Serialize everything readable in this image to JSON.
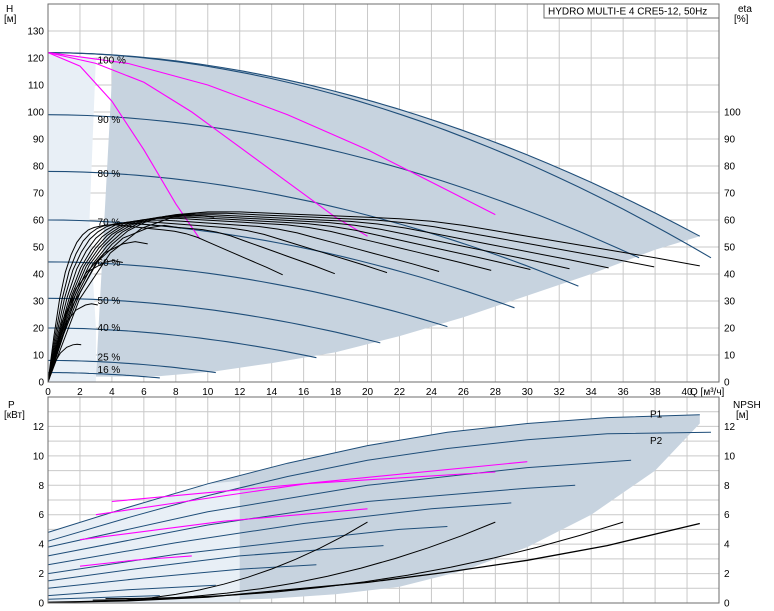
{
  "title_box": "HYDRO MULTI-E 4 CRE5-12, 50Hz",
  "chart_data": [
    {
      "type": "line",
      "name": "HQ-curves",
      "xlabel": "Q [м³/ч]",
      "ylabel_left_top": "H",
      "ylabel_left_unit": "[м]",
      "ylabel_right_top": "eta",
      "ylabel_right_unit": "[%]",
      "xlim": [
        0,
        42
      ],
      "ylim": [
        0,
        140
      ],
      "x_ticks": [
        "0",
        "2",
        "4",
        "6",
        "8",
        "10",
        "12",
        "14",
        "16",
        "18",
        "20",
        "22",
        "24",
        "26",
        "28",
        "30",
        "32",
        "34",
        "36",
        "38",
        "40"
      ],
      "y_ticks": [
        "0",
        "10",
        "20",
        "30",
        "40",
        "50",
        "60",
        "70",
        "80",
        "90",
        "100",
        "110",
        "120",
        "130"
      ],
      "eta_ticks": [
        "0",
        "10",
        "20",
        "30",
        "40",
        "50",
        "60",
        "70",
        "80",
        "90",
        "100"
      ],
      "speed_labels": [
        {
          "text": "100 %",
          "x": 2.6,
          "y": 119
        },
        {
          "text": "90 %",
          "x": 2.6,
          "y": 97
        },
        {
          "text": "80 %",
          "x": 2.6,
          "y": 77
        },
        {
          "text": "70 %",
          "x": 2.6,
          "y": 59
        },
        {
          "text": "60 %",
          "x": 2.6,
          "y": 44
        },
        {
          "text": "50 %",
          "x": 2.6,
          "y": 30
        },
        {
          "text": "40 %",
          "x": 2.6,
          "y": 20
        },
        {
          "text": "25 %",
          "x": 2.6,
          "y": 9
        },
        {
          "text": "16 %",
          "x": 2.6,
          "y": 4.5
        }
      ],
      "hq_curves": [
        {
          "speed": 100,
          "h0": 122,
          "qmax": 40.8,
          "hend": 54
        },
        {
          "speed": 100,
          "h0": 122,
          "qmax": 41.5,
          "hend": 46
        },
        {
          "speed": 90,
          "h0": 99,
          "qmax": 37,
          "hend": 46
        },
        {
          "speed": 80,
          "h0": 78,
          "qmax": 33.2,
          "hend": 35.5
        },
        {
          "speed": 70,
          "h0": 60,
          "qmax": 29.2,
          "hend": 27.5
        },
        {
          "speed": 60,
          "h0": 44.5,
          "qmax": 25,
          "hend": 20.5
        },
        {
          "speed": 50,
          "h0": 31,
          "qmax": 20.8,
          "hend": 14.5
        },
        {
          "speed": 40,
          "h0": 20,
          "qmax": 16.8,
          "hend": 9
        },
        {
          "speed": 25,
          "h0": 8,
          "qmax": 10.5,
          "hend": 3.5
        },
        {
          "speed": 16,
          "h0": 3.5,
          "qmax": 7,
          "hend": 1.5
        }
      ],
      "system_curves": [
        {
          "x": [
            0,
            2,
            4,
            6,
            8,
            9.5
          ],
          "y": [
            122,
            117,
            104,
            86,
            66,
            53
          ]
        },
        {
          "x": [
            0,
            3,
            6,
            9,
            12,
            15,
            18,
            20
          ],
          "y": [
            122,
            118,
            111,
            100,
            87,
            74,
            61,
            54
          ]
        },
        {
          "x": [
            0,
            5,
            10,
            15,
            20,
            25,
            28
          ],
          "y": [
            122,
            118,
            110,
            99,
            86,
            71,
            62
          ]
        }
      ],
      "eta_curves": [
        {
          "q": [
            0,
            1,
            2,
            3,
            4,
            5,
            6,
            7,
            8,
            9,
            10,
            12,
            14,
            16,
            18,
            20,
            22,
            24,
            26,
            28,
            30,
            32,
            34,
            36,
            38,
            40.8
          ],
          "eta": [
            0,
            18,
            33,
            44,
            51,
            56,
            59,
            61,
            62,
            62.5,
            63,
            63,
            62.5,
            62,
            61.5,
            61,
            60.5,
            59.5,
            58,
            56,
            54,
            52,
            50,
            48,
            46,
            43
          ]
        },
        {
          "q": [
            0,
            1.5,
            3,
            4.5,
            6,
            7,
            8
          ],
          "eta": [
            0,
            30,
            47,
            56,
            60,
            61,
            60
          ]
        }
      ]
    },
    {
      "type": "line",
      "name": "P-NPSH-curves",
      "ylabel_left_top": "P",
      "ylabel_left_unit": "[кВт]",
      "ylabel_right_top": "NPSH",
      "ylabel_right_unit": "[м]",
      "xlim": [
        0,
        42
      ],
      "ylim": [
        0,
        14
      ],
      "y_ticks": [
        "0",
        "2",
        "4",
        "6",
        "8",
        "10",
        "12"
      ],
      "npsh_ticks": [
        "0",
        "2",
        "4",
        "6",
        "8",
        "10",
        "12"
      ],
      "series_labels": [
        "P1",
        "P2"
      ],
      "p1": {
        "x": [
          0,
          5,
          10,
          15,
          20,
          25,
          30,
          35,
          40.8
        ],
        "y": [
          4.8,
          6.5,
          8.1,
          9.5,
          10.7,
          11.6,
          12.2,
          12.6,
          12.8
        ]
      },
      "p2": {
        "x": [
          0,
          5,
          10,
          15,
          20,
          25,
          30,
          35,
          41.5
        ],
        "y": [
          4.2,
          5.8,
          7.3,
          8.6,
          9.7,
          10.5,
          11.1,
          11.5,
          11.6
        ]
      },
      "p_curves": [
        {
          "x": [
            0,
            10,
            20,
            30,
            36.5
          ],
          "y": [
            3.8,
            6.2,
            8.0,
            9.2,
            9.7
          ]
        },
        {
          "x": [
            0,
            10,
            20,
            30,
            33
          ],
          "y": [
            3.2,
            5.3,
            6.9,
            7.8,
            8.0
          ]
        },
        {
          "x": [
            0,
            8,
            16,
            24,
            29
          ],
          "y": [
            2.6,
            4.1,
            5.4,
            6.4,
            6.8
          ]
        },
        {
          "x": [
            0,
            8,
            16,
            22,
            25
          ],
          "y": [
            2.0,
            3.3,
            4.3,
            5.0,
            5.2
          ]
        },
        {
          "x": [
            0,
            6,
            12,
            18,
            21
          ],
          "y": [
            1.5,
            2.4,
            3.2,
            3.7,
            3.9
          ]
        },
        {
          "x": [
            0,
            6,
            12,
            16.8
          ],
          "y": [
            1.0,
            1.7,
            2.3,
            2.6
          ]
        },
        {
          "x": [
            0,
            5,
            10.5
          ],
          "y": [
            0.5,
            0.9,
            1.2
          ]
        },
        {
          "x": [
            0,
            4,
            7
          ],
          "y": [
            0.25,
            0.4,
            0.5
          ]
        }
      ],
      "npsh": {
        "x": [
          0,
          5,
          10,
          15,
          20,
          25,
          30,
          35,
          40.8
        ],
        "y": [
          0.05,
          0.15,
          0.4,
          0.9,
          1.4,
          2.1,
          2.9,
          3.9,
          5.4
        ]
      }
    }
  ]
}
